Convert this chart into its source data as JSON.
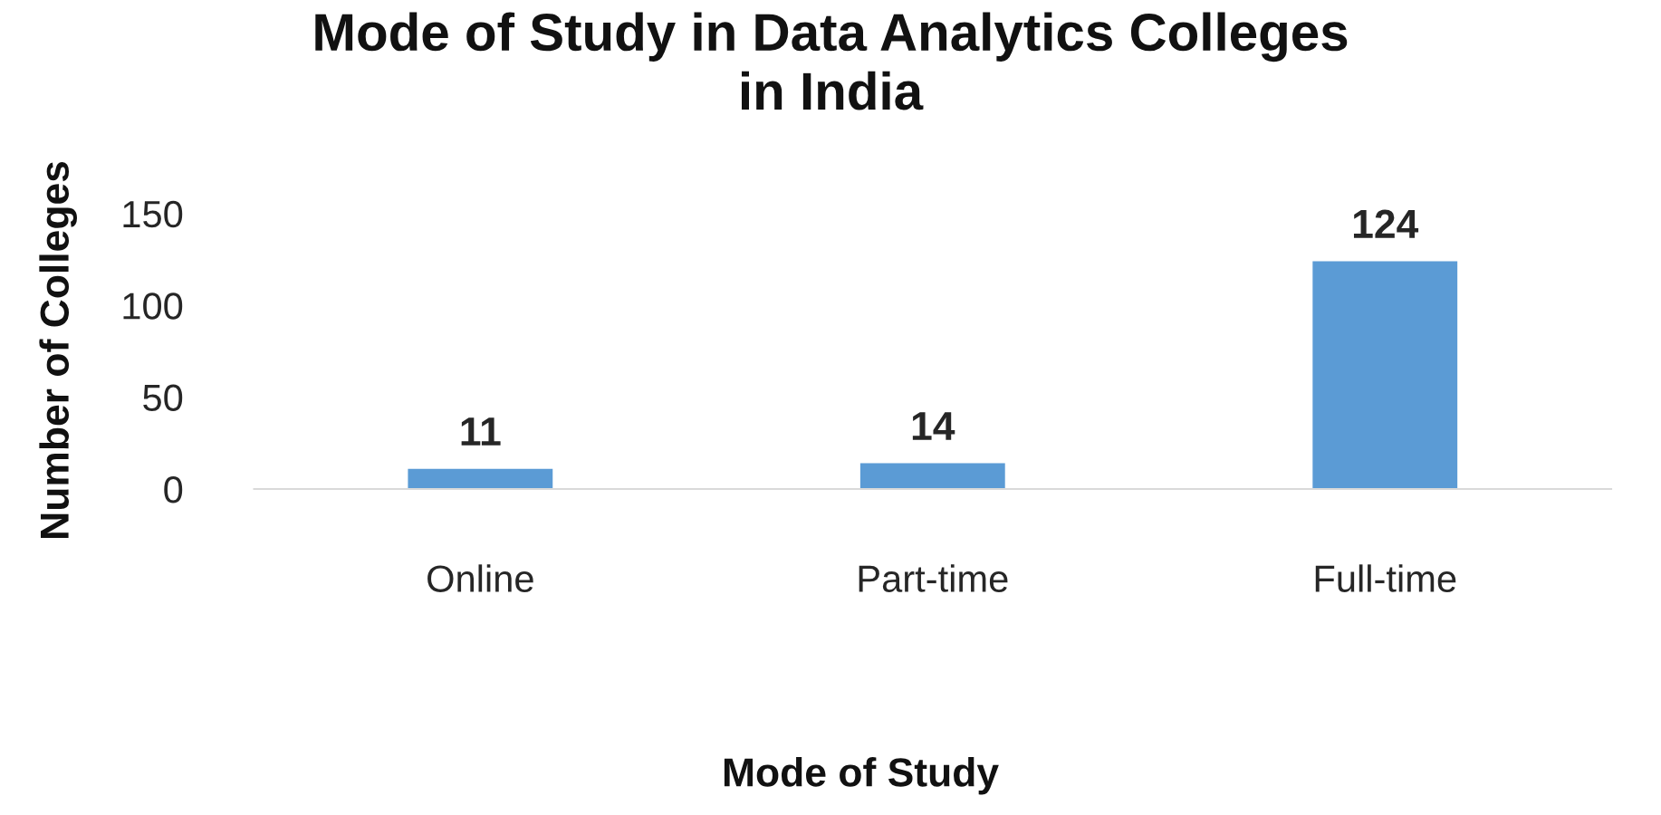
{
  "chart_data": {
    "type": "bar",
    "title": "Mode of Study in Data Analytics Colleges\nin India",
    "xlabel": "Mode of Study",
    "ylabel": "Number of Colleges",
    "categories": [
      "Online",
      "Part-time",
      "Full-time"
    ],
    "values": [
      11,
      14,
      124
    ],
    "color": "#5b9bd5",
    "ylim": [
      0,
      150
    ],
    "yticks": [
      0,
      50,
      100,
      150
    ],
    "grid": false,
    "data_labels": true
  }
}
